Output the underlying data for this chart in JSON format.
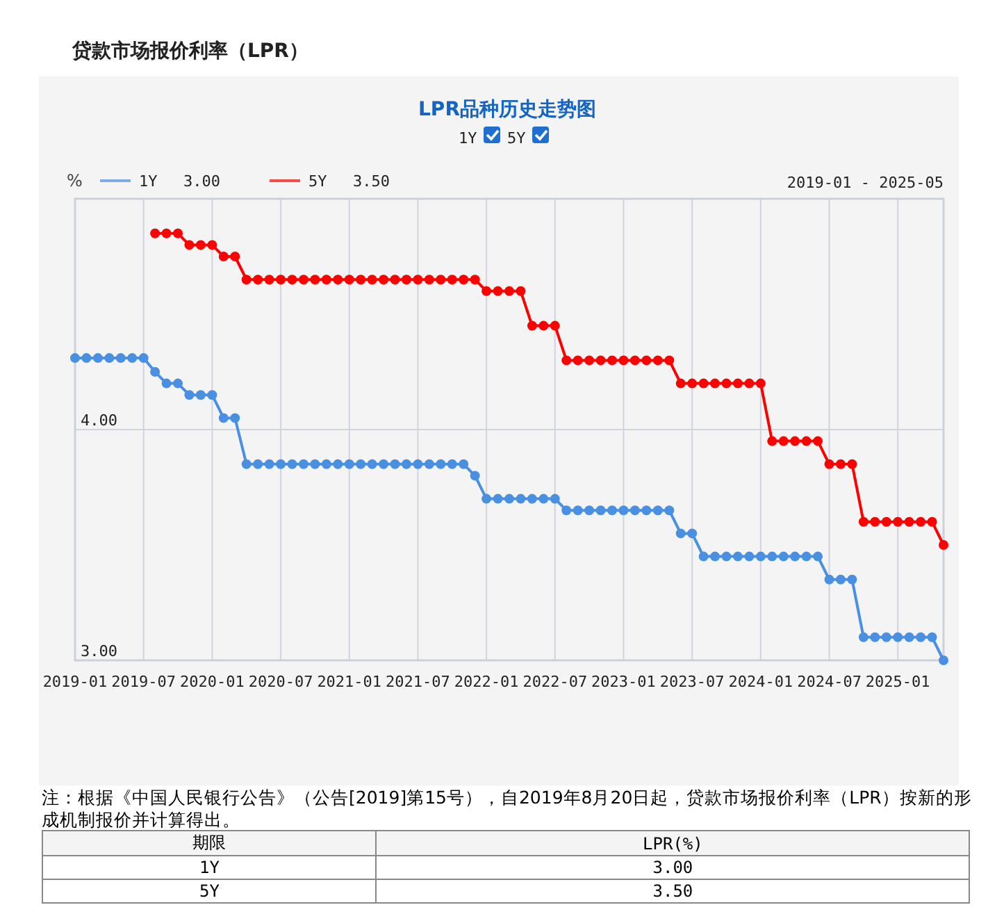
{
  "chart_data": {
    "type": "line",
    "title": "贷款市场报价利率（LPR）",
    "subtitle": "LPR品种历史走势图",
    "ylabel": "%",
    "x": [
      "2019-01",
      "2019-02",
      "2019-03",
      "2019-04",
      "2019-05",
      "2019-06",
      "2019-07",
      "2019-08",
      "2019-09",
      "2019-10",
      "2019-11",
      "2019-12",
      "2020-01",
      "2020-02",
      "2020-03",
      "2020-04",
      "2020-05",
      "2020-06",
      "2020-07",
      "2020-08",
      "2020-09",
      "2020-10",
      "2020-11",
      "2020-12",
      "2021-01",
      "2021-02",
      "2021-03",
      "2021-04",
      "2021-05",
      "2021-06",
      "2021-07",
      "2021-08",
      "2021-09",
      "2021-10",
      "2021-11",
      "2021-12",
      "2022-01",
      "2022-02",
      "2022-03",
      "2022-04",
      "2022-05",
      "2022-06",
      "2022-07",
      "2022-08",
      "2022-09",
      "2022-10",
      "2022-11",
      "2022-12",
      "2023-01",
      "2023-02",
      "2023-03",
      "2023-04",
      "2023-05",
      "2023-06",
      "2023-07",
      "2023-08",
      "2023-09",
      "2023-10",
      "2023-11",
      "2023-12",
      "2024-01",
      "2024-02",
      "2024-03",
      "2024-04",
      "2024-05",
      "2024-06",
      "2024-07",
      "2024-08",
      "2024-09",
      "2024-10",
      "2024-11",
      "2024-12",
      "2025-01",
      "2025-02",
      "2025-03",
      "2025-04",
      "2025-05"
    ],
    "series": [
      {
        "name": "1Y",
        "color": "#4a90e2",
        "values": [
          4.31,
          4.31,
          4.31,
          4.31,
          4.31,
          4.31,
          4.31,
          4.25,
          4.2,
          4.2,
          4.15,
          4.15,
          4.15,
          4.05,
          4.05,
          3.85,
          3.85,
          3.85,
          3.85,
          3.85,
          3.85,
          3.85,
          3.85,
          3.85,
          3.85,
          3.85,
          3.85,
          3.85,
          3.85,
          3.85,
          3.85,
          3.85,
          3.85,
          3.85,
          3.85,
          3.8,
          3.7,
          3.7,
          3.7,
          3.7,
          3.7,
          3.7,
          3.7,
          3.65,
          3.65,
          3.65,
          3.65,
          3.65,
          3.65,
          3.65,
          3.65,
          3.65,
          3.65,
          3.55,
          3.55,
          3.45,
          3.45,
          3.45,
          3.45,
          3.45,
          3.45,
          3.45,
          3.45,
          3.45,
          3.45,
          3.45,
          3.35,
          3.35,
          3.35,
          3.1,
          3.1,
          3.1,
          3.1,
          3.1,
          3.1,
          3.1,
          3.0
        ]
      },
      {
        "name": "5Y",
        "color": "#ff0000",
        "values": [
          null,
          null,
          null,
          null,
          null,
          null,
          null,
          4.85,
          4.85,
          4.85,
          4.8,
          4.8,
          4.8,
          4.75,
          4.75,
          4.65,
          4.65,
          4.65,
          4.65,
          4.65,
          4.65,
          4.65,
          4.65,
          4.65,
          4.65,
          4.65,
          4.65,
          4.65,
          4.65,
          4.65,
          4.65,
          4.65,
          4.65,
          4.65,
          4.65,
          4.65,
          4.6,
          4.6,
          4.6,
          4.6,
          4.45,
          4.45,
          4.45,
          4.3,
          4.3,
          4.3,
          4.3,
          4.3,
          4.3,
          4.3,
          4.3,
          4.3,
          4.3,
          4.2,
          4.2,
          4.2,
          4.2,
          4.2,
          4.2,
          4.2,
          4.2,
          3.95,
          3.95,
          3.95,
          3.95,
          3.95,
          3.85,
          3.85,
          3.85,
          3.6,
          3.6,
          3.6,
          3.6,
          3.6,
          3.6,
          3.6,
          3.5
        ]
      }
    ],
    "xlim": [
      "2019-01",
      "2025-05"
    ],
    "xticks": [
      "2019-01",
      "2019-07",
      "2020-01",
      "2020-07",
      "2021-01",
      "2021-07",
      "2022-01",
      "2022-07",
      "2023-01",
      "2023-07",
      "2024-01",
      "2024-07",
      "2025-01"
    ],
    "ylim": [
      3,
      5
    ],
    "yticks": [
      {
        "value": 3,
        "label": "3.00"
      },
      {
        "value": 4,
        "label": "4.00"
      },
      {
        "value": 5,
        "label": null
      }
    ],
    "grid": true,
    "legend": "top left",
    "marker": "circle",
    "annotations": [
      "注：根据《中国人民银行公告》（公告[2019]第15号），自2019年8月20日起，贷款市场报价利率（LPR）按新的形成机制报价并计算得出。",
      "2019-01 - 2025-05",
      "期限",
      "LPR(%)",
      "1Y",
      "3.00",
      "5Y",
      "3.50"
    ]
  }
}
